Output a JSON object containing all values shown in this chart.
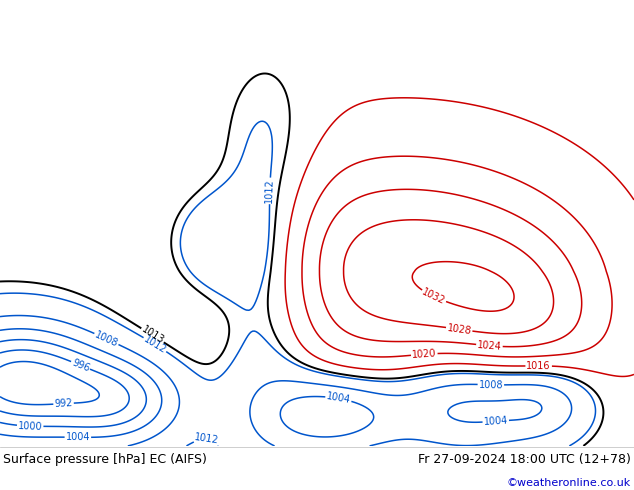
{
  "title_left": "Surface pressure [hPa] EC (AIFS)",
  "title_right": "Fr 27-09-2024 18:00 UTC (12+78)",
  "credit": "©weatheronline.co.uk",
  "bg_color": "#d0dce8",
  "land_color": "#c8e6b0",
  "coast_color": "#888888",
  "blue_contour_color": "#0055cc",
  "red_contour_color": "#cc0000",
  "black_contour_color": "#000000",
  "contour_linewidth": 1.1,
  "label_fontsize": 7,
  "footer_fontsize": 9,
  "credit_fontsize": 8,
  "credit_color": "#0000cc",
  "lon_min": 90,
  "lon_max": 185,
  "lat_min": -57,
  "lat_max": 12
}
